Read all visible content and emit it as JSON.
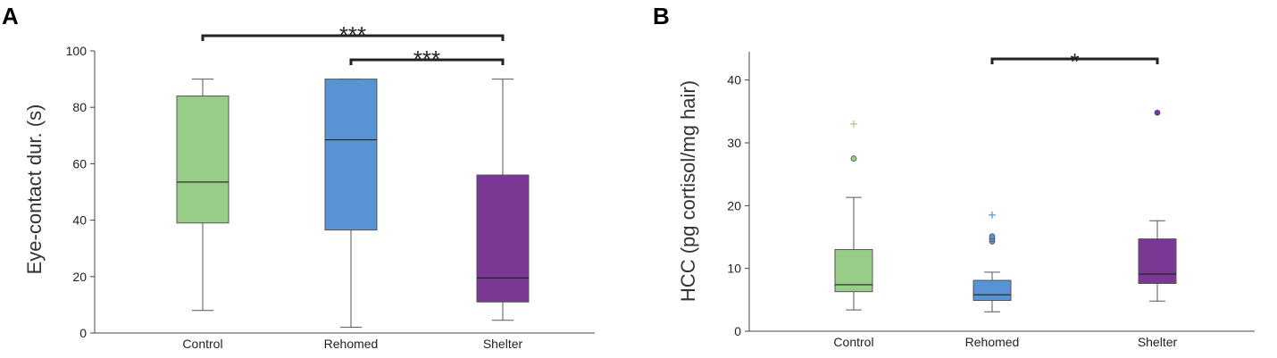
{
  "chart_data": [
    {
      "type": "box",
      "panel_label": "A",
      "title": "",
      "xlabel": "",
      "ylabel": "Eye-contact dur. (s)",
      "ylim": [
        0,
        100
      ],
      "yticks": [
        0,
        20,
        40,
        60,
        80,
        100
      ],
      "grid": false,
      "categories": [
        "Control",
        "Rehomed",
        "Shelter"
      ],
      "colors": [
        "#98cd88",
        "#5894d4",
        "#7a3793"
      ],
      "boxes": [
        {
          "min": 8,
          "q1": 39,
          "median": 53.5,
          "q3": 84,
          "max": 90,
          "outliers": []
        },
        {
          "min": 2,
          "q1": 36.5,
          "median": 68.5,
          "q3": 90,
          "max": 90,
          "outliers": []
        },
        {
          "min": 4.5,
          "q1": 11,
          "median": 19.5,
          "q3": 56,
          "max": 90,
          "outliers": []
        }
      ],
      "significance": [
        {
          "from": 0,
          "to": 2,
          "label": "***"
        },
        {
          "from": 1,
          "to": 2,
          "label": "***"
        }
      ]
    },
    {
      "type": "box",
      "panel_label": "B",
      "title": "",
      "xlabel": "",
      "ylabel": "HCC (pg cortisol/mg hair)",
      "ylim": [
        0,
        44.5
      ],
      "yticks": [
        0,
        10,
        20,
        30,
        40
      ],
      "grid": false,
      "categories": [
        "Control",
        "Rehomed",
        "Shelter"
      ],
      "colors": [
        "#98cd88",
        "#5894d4",
        "#7a3793"
      ],
      "boxes": [
        {
          "min": 3.4,
          "q1": 6.3,
          "median": 7.4,
          "q3": 13,
          "max": 21.3,
          "outliers": [
            {
              "value": 27.5,
              "marker": "circle"
            },
            {
              "value": 33,
              "marker": "plus"
            }
          ]
        },
        {
          "min": 3.1,
          "q1": 4.9,
          "median": 5.8,
          "q3": 8.1,
          "max": 9.4,
          "outliers": [
            {
              "value": 14.3,
              "marker": "circle"
            },
            {
              "value": 14.7,
              "marker": "circle"
            },
            {
              "value": 15.1,
              "marker": "circle"
            },
            {
              "value": 18.5,
              "marker": "plus"
            }
          ]
        },
        {
          "min": 4.8,
          "q1": 7.6,
          "median": 9.1,
          "q3": 14.7,
          "max": 17.6,
          "outliers": [
            {
              "value": 34.8,
              "marker": "circle"
            }
          ]
        }
      ],
      "significance": [
        {
          "from": 1,
          "to": 2,
          "label": "*"
        }
      ]
    }
  ]
}
